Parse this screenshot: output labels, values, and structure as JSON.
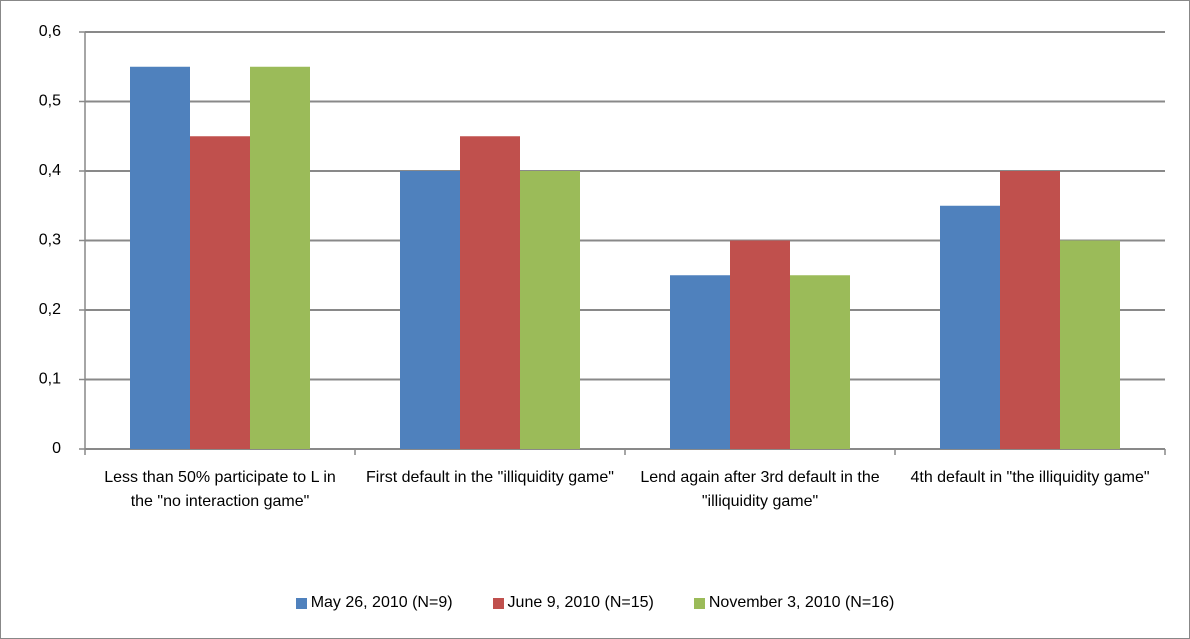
{
  "chart_data": {
    "type": "bar",
    "categories": [
      "Less than 50% participate to L in the \"no interaction game\"",
      "First default in the \"illiquidity game\"",
      "Lend again after 3rd default in the \"illiquidity game\"",
      "4th default in \"the illiquidity game\""
    ],
    "series": [
      {
        "name": "May 26, 2010 (N=9)",
        "color": "#4f81bd",
        "values": [
          0.55,
          0.4,
          0.25,
          0.35
        ]
      },
      {
        "name": "June 9, 2010 (N=15)",
        "color": "#c0504d",
        "values": [
          0.45,
          0.45,
          0.3,
          0.4
        ]
      },
      {
        "name": "November 3, 2010 (N=16)",
        "color": "#9bbb59",
        "values": [
          0.55,
          0.4,
          0.25,
          0.3
        ]
      }
    ],
    "ylim": [
      0,
      0.6
    ],
    "yticks": [
      0,
      {
        "value": 0.1,
        "label": "0,1"
      },
      {
        "value": 0.2,
        "label": "0,2"
      },
      {
        "value": 0.3,
        "label": "0,3"
      },
      {
        "value": 0.4,
        "label": "0,4"
      },
      {
        "value": 0.5,
        "label": "0,5"
      },
      {
        "value": 0.6,
        "label": "0,6"
      }
    ],
    "grid": true,
    "legend": "bottom"
  }
}
